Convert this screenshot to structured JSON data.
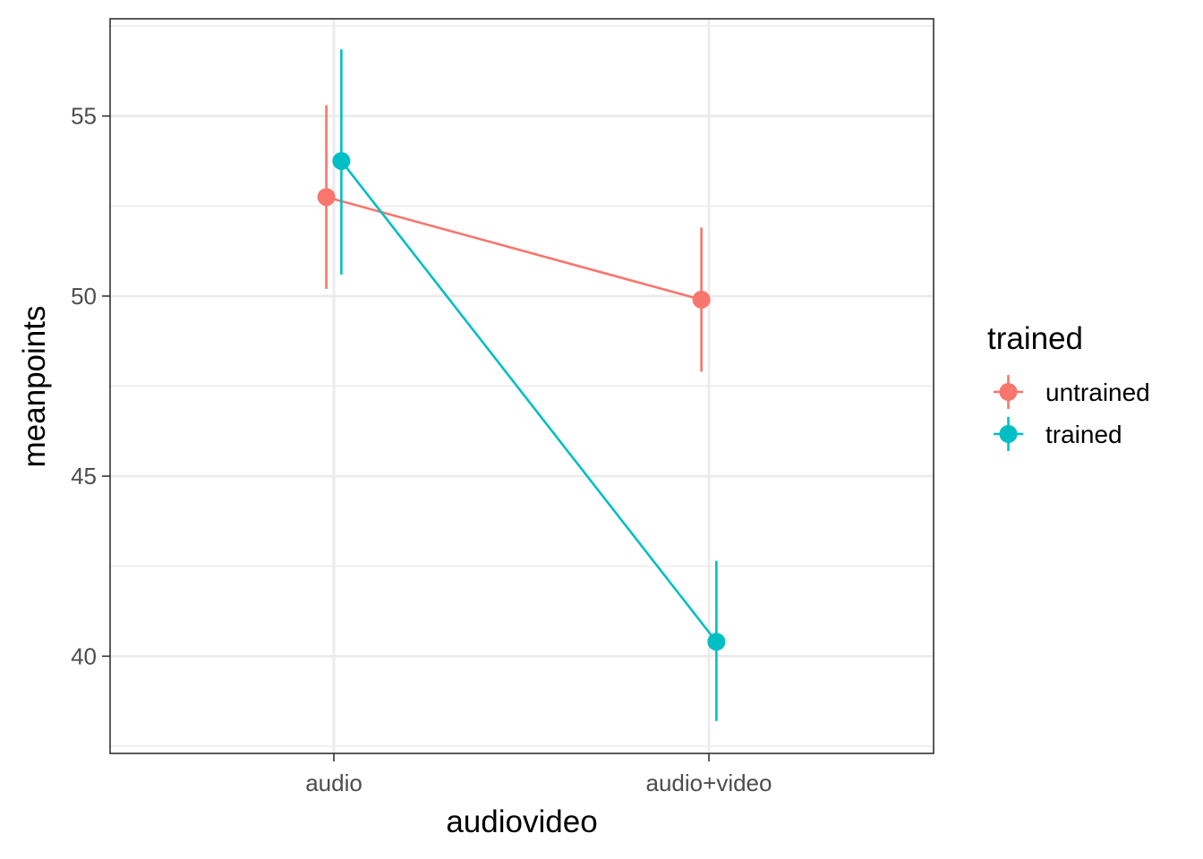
{
  "chart_data": {
    "type": "line",
    "categories": [
      "audio",
      "audio+video"
    ],
    "xlabel": "audiovideo",
    "ylabel": "meanpoints",
    "ylim": [
      37.3,
      57.7
    ],
    "yticks": [
      40,
      45,
      50,
      55
    ],
    "y_minor_ticks": [
      37.5,
      42.5,
      47.5,
      52.5,
      57.5
    ],
    "grid": true,
    "legend": {
      "title": "trained",
      "position": "right"
    },
    "series": [
      {
        "name": "untrained",
        "color": "#F8766D",
        "values": [
          52.75,
          49.9
        ],
        "lower": [
          50.2,
          47.9
        ],
        "upper": [
          55.3,
          51.9
        ],
        "x_offset": -0.02
      },
      {
        "name": "trained",
        "color": "#00BFC4",
        "values": [
          53.75,
          40.4
        ],
        "lower": [
          50.6,
          38.2
        ],
        "upper": [
          56.85,
          42.65
        ],
        "x_offset": 0.02
      }
    ]
  }
}
